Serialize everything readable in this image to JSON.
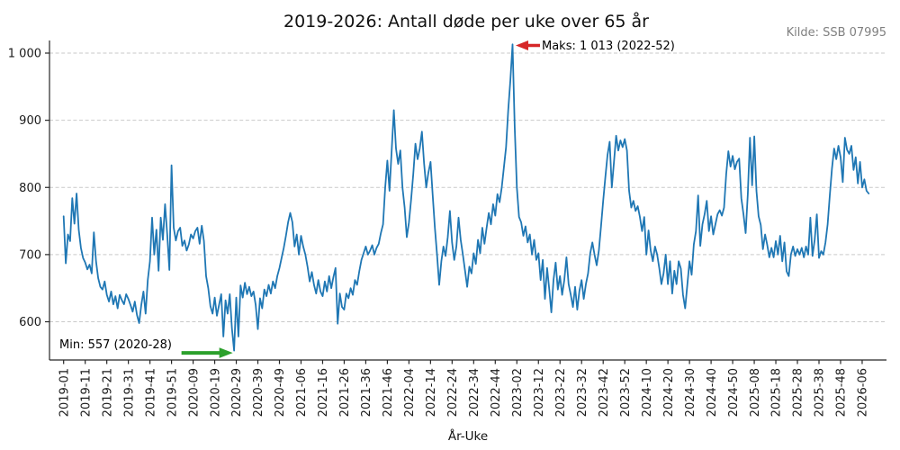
{
  "chart_data": {
    "type": "line",
    "title": "2019-2026: Antall døde per uke over 65 år",
    "source_label": "Kilde: SSB 07995",
    "xlabel": "År-Uke",
    "frequency": "weekly",
    "x_start_week": "2019-01",
    "x_end_week": "2026-09",
    "grid": "horizontal-dashed",
    "legend": "none",
    "line_color": "#1f77b4",
    "ylim": [
      543,
      1019
    ],
    "y_ticks": [
      600,
      700,
      800,
      900,
      1000
    ],
    "y_tick_labels": [
      "600",
      "700",
      "800",
      "900",
      "1 000"
    ],
    "x_tick_step_weeks": 10,
    "x_tick_labels": [
      "2019-01",
      "2019-11",
      "2019-21",
      "2019-31",
      "2019-41",
      "2019-51",
      "2020-09",
      "2020-19",
      "2020-29",
      "2020-39",
      "2020-49",
      "2021-06",
      "2021-16",
      "2021-26",
      "2021-36",
      "2021-46",
      "2022-04",
      "2022-14",
      "2022-24",
      "2022-34",
      "2022-44",
      "2023-02",
      "2023-12",
      "2023-22",
      "2023-32",
      "2023-42",
      "2023-52",
      "2024-10",
      "2024-20",
      "2024-30",
      "2024-40",
      "2024-50",
      "2025-08",
      "2025-18",
      "2025-28",
      "2025-38",
      "2025-48",
      "2026-06"
    ],
    "series": [
      {
        "name": "Antall døde per uke over 65 år",
        "values": [
          757,
          687,
          730,
          720,
          784,
          746,
          791,
          737,
          710,
          695,
          688,
          678,
          685,
          672,
          733,
          690,
          665,
          652,
          648,
          660,
          640,
          630,
          645,
          626,
          638,
          620,
          640,
          632,
          626,
          641,
          634,
          625,
          615,
          630,
          610,
          598,
          625,
          645,
          612,
          662,
          690,
          755,
          700,
          737,
          676,
          755,
          722,
          775,
          730,
          677,
          833,
          740,
          721,
          735,
          740,
          713,
          721,
          706,
          715,
          730,
          724,
          735,
          740,
          716,
          743,
          720,
          668,
          650,
          623,
          612,
          636,
          609,
          625,
          641,
          578,
          632,
          612,
          641,
          590,
          557,
          636,
          578,
          654,
          636,
          658,
          641,
          652,
          638,
          645,
          625,
          589,
          635,
          620,
          648,
          638,
          655,
          642,
          660,
          650,
          668,
          680,
          695,
          710,
          728,
          748,
          762,
          748,
          712,
          730,
          700,
          728,
          712,
          700,
          682,
          660,
          674,
          655,
          642,
          662,
          645,
          638,
          660,
          645,
          668,
          650,
          666,
          680,
          597,
          642,
          622,
          618,
          642,
          635,
          650,
          640,
          662,
          655,
          675,
          692,
          702,
          712,
          700,
          706,
          714,
          700,
          710,
          716,
          732,
          745,
          800,
          840,
          795,
          855,
          915,
          858,
          835,
          855,
          800,
          770,
          726,
          748,
          782,
          820,
          865,
          842,
          858,
          883,
          836,
          800,
          822,
          838,
          788,
          740,
          700,
          655,
          690,
          712,
          698,
          726,
          765,
          718,
          692,
          712,
          755,
          722,
          700,
          676,
          652,
          682,
          672,
          702,
          686,
          722,
          702,
          740,
          716,
          740,
          762,
          745,
          775,
          758,
          790,
          778,
          800,
          830,
          860,
          915,
          960,
          1013,
          890,
          800,
          756,
          748,
          728,
          742,
          718,
          730,
          700,
          722,
          692,
          702,
          662,
          692,
          634,
          680,
          648,
          614,
          662,
          688,
          648,
          668,
          640,
          662,
          696,
          656,
          640,
          622,
          652,
          618,
          646,
          662,
          634,
          656,
          672,
          702,
          718,
          700,
          684,
          706,
          742,
          780,
          815,
          848,
          868,
          800,
          838,
          877,
          855,
          870,
          860,
          872,
          855,
          795,
          770,
          780,
          765,
          772,
          756,
          735,
          756,
          700,
          736,
          706,
          690,
          712,
          700,
          680,
          656,
          672,
          700,
          656,
          690,
          642,
          676,
          656,
          690,
          679,
          640,
          620,
          655,
          690,
          670,
          715,
          735,
          788,
          713,
          745,
          760,
          780,
          735,
          757,
          730,
          745,
          760,
          766,
          758,
          770,
          820,
          854,
          831,
          847,
          827,
          838,
          843,
          784,
          760,
          732,
          790,
          874,
          803,
          876,
          795,
          757,
          744,
          708,
          730,
          715,
          696,
          710,
          696,
          720,
          700,
          728,
          690,
          718,
          675,
          668,
          700,
          712,
          698,
          708,
          700,
          710,
          696,
          712,
          700,
          755,
          698,
          722,
          760,
          695,
          705,
          700,
          718,
          745,
          788,
          828,
          858,
          842,
          862,
          845,
          808,
          874,
          856,
          850,
          862,
          826,
          845,
          806,
          838,
          800,
          812,
          795,
          791
        ]
      }
    ],
    "annotations": {
      "max": {
        "label": "Maks: 1 013 (2022-52)",
        "week": "2022-52",
        "week_index": 208,
        "value": 1013,
        "arrow_color": "#d62728",
        "arrow_direction": "left"
      },
      "min": {
        "label": "Min: 557 (2020-28)",
        "week": "2020-28",
        "week_index": 79,
        "value": 557,
        "arrow_color": "#2ca02c",
        "arrow_direction": "right"
      }
    }
  }
}
